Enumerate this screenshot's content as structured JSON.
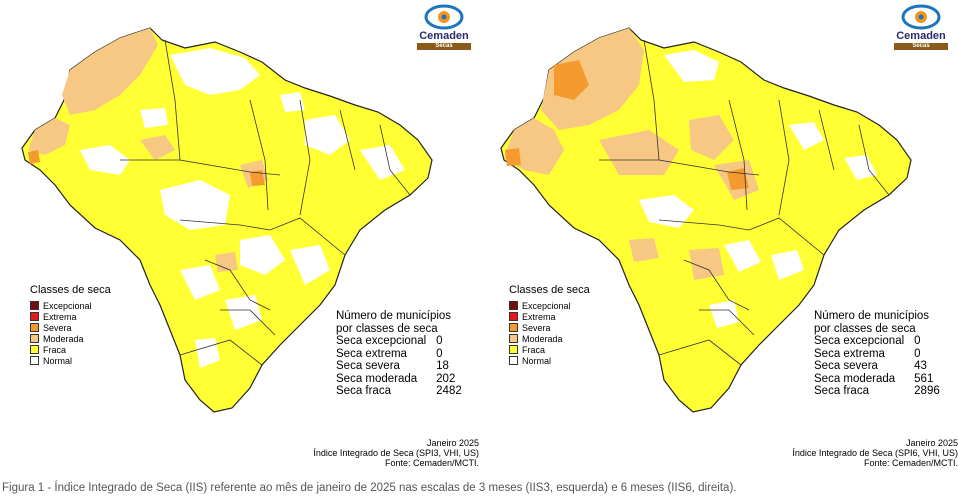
{
  "legend": {
    "title": "Classes de seca",
    "classes": [
      {
        "label": "Excepcional",
        "color": "#7a0a0a"
      },
      {
        "label": "Extrema",
        "color": "#e31a1c"
      },
      {
        "label": "Severa",
        "color": "#f59a2e"
      },
      {
        "label": "Moderada",
        "color": "#f7c883"
      },
      {
        "label": "Fraca",
        "color": "#ffff33"
      },
      {
        "label": "Normal",
        "color": "#ffffff"
      }
    ]
  },
  "logo": {
    "name": "Cemaden",
    "band": "Secas"
  },
  "maps": [
    {
      "stats_header_1": "Número de municípios",
      "stats_header_2": "por classes de seca",
      "stats": [
        {
          "label": "Seca excepcional",
          "value": "0"
        },
        {
          "label": "Seca extrema",
          "value": "0"
        },
        {
          "label": "Seca severa",
          "value": "18"
        },
        {
          "label": "Seca moderada",
          "value": "202"
        },
        {
          "label": "Seca fraca",
          "value": "2482"
        }
      ],
      "footer_date": "Janeiro 2025",
      "footer_index": "Índice Integrado de Seca (SPI3, VHI, US)",
      "footer_source": "Fonte: Cemaden/MCTI."
    },
    {
      "stats_header_1": "Número de municípios",
      "stats_header_2": "por classes de seca",
      "stats": [
        {
          "label": "Seca excepcional",
          "value": "0"
        },
        {
          "label": "Seca extrema",
          "value": "0"
        },
        {
          "label": "Seca severa",
          "value": "43"
        },
        {
          "label": "Seca moderada",
          "value": "561"
        },
        {
          "label": "Seca fraca",
          "value": "2896"
        }
      ],
      "footer_date": "Janeiro 2025",
      "footer_index": "Índice Integrado de Seca (SPI6, VHI, US)",
      "footer_source": "Fonte: Cemaden/MCTI."
    }
  ],
  "caption": "Figura 1 - Índice Integrado de Seca (IIS) referente ao mês de janeiro de 2025 nas escalas de 3 meses (IIS3, esquerda) e 6 meses (IIS6, direita)."
}
